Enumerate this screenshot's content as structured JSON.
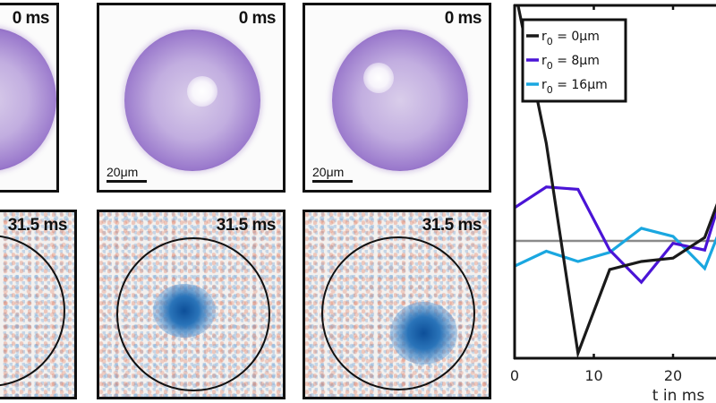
{
  "panels": {
    "top_row_timestamp": "0 ms",
    "bottom_row_timestamp": "31.5 ms",
    "scalebar_label": "20μm",
    "columns": [
      {
        "r0_um": 0,
        "top": {
          "time": "0 ms"
        },
        "bottom": {
          "time": "31.5 ms"
        }
      },
      {
        "r0_um": 8,
        "top": {
          "time": "0 ms",
          "scalebar": "20μm"
        },
        "bottom": {
          "time": "31.5 ms"
        }
      },
      {
        "r0_um": 16,
        "top": {
          "time": "0 ms",
          "scalebar": "20μm"
        },
        "bottom": {
          "time": "31.5 ms"
        }
      }
    ],
    "colors": {
      "sphere_purple": "#6a3aa8",
      "diff_blue": "#2a74b9",
      "diff_red": "#e2785a",
      "frame": "#111111"
    }
  },
  "chart_data": {
    "type": "line",
    "title": "",
    "xlabel": "t in ms",
    "ylabel": "",
    "x_ticks": [
      "0",
      "10",
      "20"
    ],
    "xlim": [
      0,
      25
    ],
    "ylim": [
      -1.0,
      1.0
    ],
    "baseline": 0,
    "grid": false,
    "legend_position": "upper-left",
    "x": [
      0,
      4,
      8,
      12,
      16,
      20,
      24,
      26
    ],
    "series": [
      {
        "name": "r0 = 0μm",
        "color": "#1a1a1a",
        "values": [
          2.2,
          0.85,
          -0.98,
          -0.25,
          -0.18,
          -0.15,
          0.03,
          0.4
        ]
      },
      {
        "name": "r0 = 8μm",
        "color": "#4a14d6",
        "values": [
          0.29,
          0.47,
          0.45,
          -0.08,
          -0.36,
          -0.02,
          -0.08,
          0.37
        ]
      },
      {
        "name": "r0 = 16μm",
        "color": "#1aa7e0",
        "values": [
          -0.22,
          -0.09,
          -0.18,
          -0.1,
          0.11,
          0.04,
          -0.24,
          0.11
        ]
      }
    ]
  },
  "legend": {
    "items": [
      {
        "label": "r",
        "sub": "0",
        "rest": " = 0μm",
        "color": "#1a1a1a"
      },
      {
        "label": "r",
        "sub": "0",
        "rest": " = 8μm",
        "color": "#4a14d6"
      },
      {
        "label": "r",
        "sub": "0",
        "rest": " = 16μm",
        "color": "#1aa7e0"
      }
    ]
  },
  "axis": {
    "xlabel": "t in ms",
    "ticks": [
      "0",
      "10",
      "20"
    ]
  }
}
